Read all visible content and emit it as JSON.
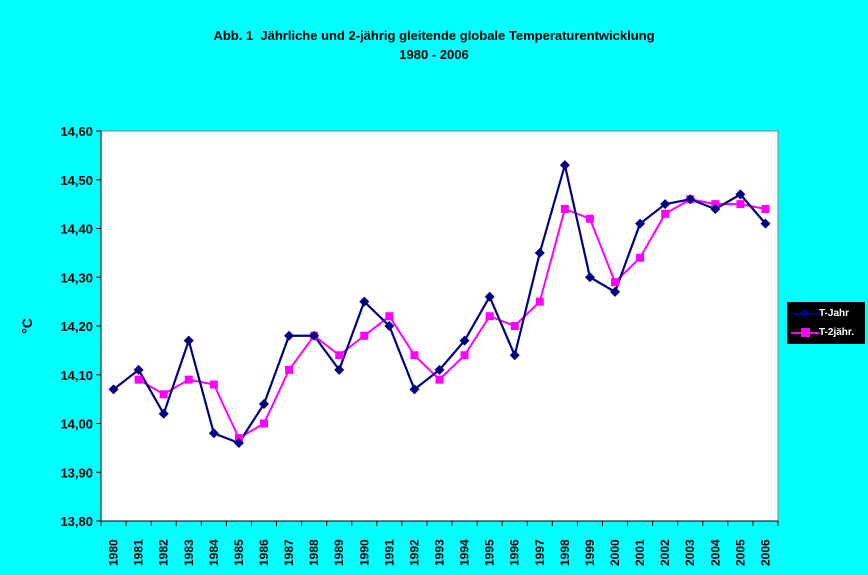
{
  "chart_data": {
    "type": "line",
    "title_line1": "Abb. 1  Jährliche und 2-jährig gleitende globale Temperaturentwicklung",
    "title_line2": "1980 - 2006",
    "xlabel": "",
    "ylabel": "°C",
    "ylim": [
      13.8,
      14.6
    ],
    "yticks": [
      "13,80",
      "13,90",
      "14,00",
      "14,10",
      "14,20",
      "14,30",
      "14,40",
      "14,50",
      "14,60"
    ],
    "categories": [
      "1980",
      "1981",
      "1982",
      "1983",
      "1984",
      "1985",
      "1986",
      "1987",
      "1988",
      "1989",
      "1990",
      "1991",
      "1992",
      "1993",
      "1994",
      "1995",
      "1996",
      "1997",
      "1998",
      "1999",
      "2000",
      "2001",
      "2002",
      "2003",
      "2004",
      "2005",
      "2006"
    ],
    "grid": false,
    "legend_position": "right",
    "series": [
      {
        "name": "T-Jahr",
        "color": "#000080",
        "marker": "diamond",
        "values": [
          14.07,
          14.11,
          14.02,
          14.17,
          13.98,
          13.96,
          14.04,
          14.18,
          14.18,
          14.11,
          14.25,
          14.2,
          14.07,
          14.11,
          14.17,
          14.26,
          14.14,
          14.35,
          14.53,
          14.3,
          14.27,
          14.41,
          14.45,
          14.46,
          14.44,
          14.47,
          14.41
        ]
      },
      {
        "name": "T-2jähr.",
        "color": "#ff00ff",
        "marker": "square",
        "values": [
          null,
          14.09,
          14.06,
          14.09,
          14.08,
          13.97,
          14.0,
          14.11,
          14.18,
          14.14,
          14.18,
          14.22,
          14.14,
          14.09,
          14.14,
          14.22,
          14.2,
          14.25,
          14.44,
          14.42,
          14.29,
          14.34,
          14.43,
          14.46,
          14.45,
          14.45,
          14.44
        ]
      }
    ]
  }
}
